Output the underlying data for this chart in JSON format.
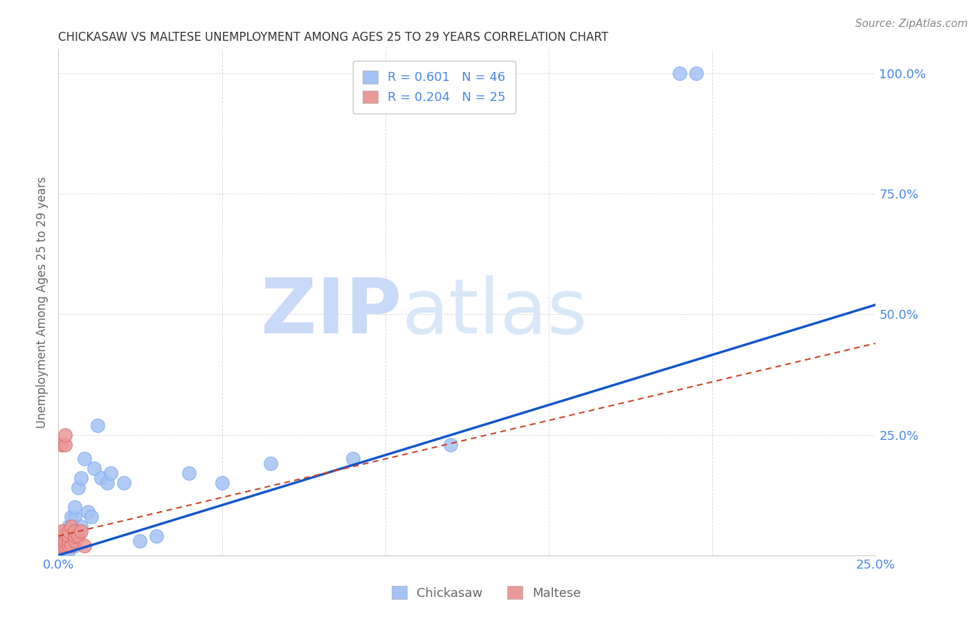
{
  "title": "CHICKASAW VS MALTESE UNEMPLOYMENT AMONG AGES 25 TO 29 YEARS CORRELATION CHART",
  "source": "Source: ZipAtlas.com",
  "ylabel": "Unemployment Among Ages 25 to 29 years",
  "xlim": [
    0.0,
    0.25
  ],
  "ylim": [
    0.0,
    1.05
  ],
  "x_ticks": [
    0.0,
    0.05,
    0.1,
    0.15,
    0.2,
    0.25
  ],
  "x_tick_labels": [
    "0.0%",
    "",
    "",
    "",
    "",
    "25.0%"
  ],
  "y_ticks": [
    0.25,
    0.5,
    0.75,
    1.0
  ],
  "y_tick_labels": [
    "25.0%",
    "50.0%",
    "75.0%",
    "100.0%"
  ],
  "chickasaw_R": "0.601",
  "chickasaw_N": "46",
  "maltese_R": "0.204",
  "maltese_N": "25",
  "chickasaw_color": "#a4c2f4",
  "maltese_color": "#ea9999",
  "chickasaw_line_color": "#1155cc",
  "maltese_line_color": "#cc4125",
  "watermark_zip": "ZIP",
  "watermark_atlas": "atlas",
  "watermark_color": "#c9daf8",
  "watermark_color2": "#d9e8f8",
  "chickasaw_x": [
    0.001,
    0.001,
    0.001,
    0.001,
    0.002,
    0.002,
    0.002,
    0.002,
    0.002,
    0.003,
    0.003,
    0.003,
    0.003,
    0.003,
    0.003,
    0.004,
    0.004,
    0.004,
    0.004,
    0.005,
    0.005,
    0.005,
    0.005,
    0.005,
    0.006,
    0.006,
    0.007,
    0.007,
    0.008,
    0.009,
    0.01,
    0.011,
    0.012,
    0.013,
    0.015,
    0.016,
    0.02,
    0.025,
    0.03,
    0.04,
    0.05,
    0.065,
    0.09,
    0.12,
    0.19,
    0.195
  ],
  "chickasaw_y": [
    0.02,
    0.02,
    0.03,
    0.04,
    0.01,
    0.02,
    0.03,
    0.04,
    0.05,
    0.01,
    0.02,
    0.03,
    0.04,
    0.05,
    0.06,
    0.02,
    0.04,
    0.06,
    0.08,
    0.02,
    0.03,
    0.04,
    0.08,
    0.1,
    0.05,
    0.14,
    0.06,
    0.16,
    0.2,
    0.09,
    0.08,
    0.18,
    0.27,
    0.16,
    0.15,
    0.17,
    0.15,
    0.03,
    0.04,
    0.17,
    0.15,
    0.19,
    0.2,
    0.23,
    1.0,
    1.0
  ],
  "maltese_x": [
    0.001,
    0.001,
    0.001,
    0.001,
    0.001,
    0.001,
    0.001,
    0.001,
    0.001,
    0.002,
    0.002,
    0.002,
    0.002,
    0.003,
    0.003,
    0.003,
    0.003,
    0.004,
    0.004,
    0.005,
    0.005,
    0.005,
    0.006,
    0.007,
    0.008
  ],
  "maltese_y": [
    0.02,
    0.02,
    0.02,
    0.03,
    0.03,
    0.04,
    0.04,
    0.05,
    0.23,
    0.02,
    0.03,
    0.23,
    0.25,
    0.02,
    0.03,
    0.04,
    0.05,
    0.02,
    0.06,
    0.03,
    0.04,
    0.05,
    0.04,
    0.05,
    0.02
  ],
  "chickasaw_trend_x": [
    0.0,
    0.25
  ],
  "chickasaw_trend_y": [
    0.0,
    0.52
  ],
  "maltese_trend_x": [
    0.0,
    0.25
  ],
  "maltese_trend_y": [
    0.04,
    0.44
  ],
  "background_color": "#ffffff",
  "grid_color": "#cccccc",
  "tick_color": "#4a86e8",
  "label_color": "#666666",
  "legend_text_color": "#4a86e8"
}
